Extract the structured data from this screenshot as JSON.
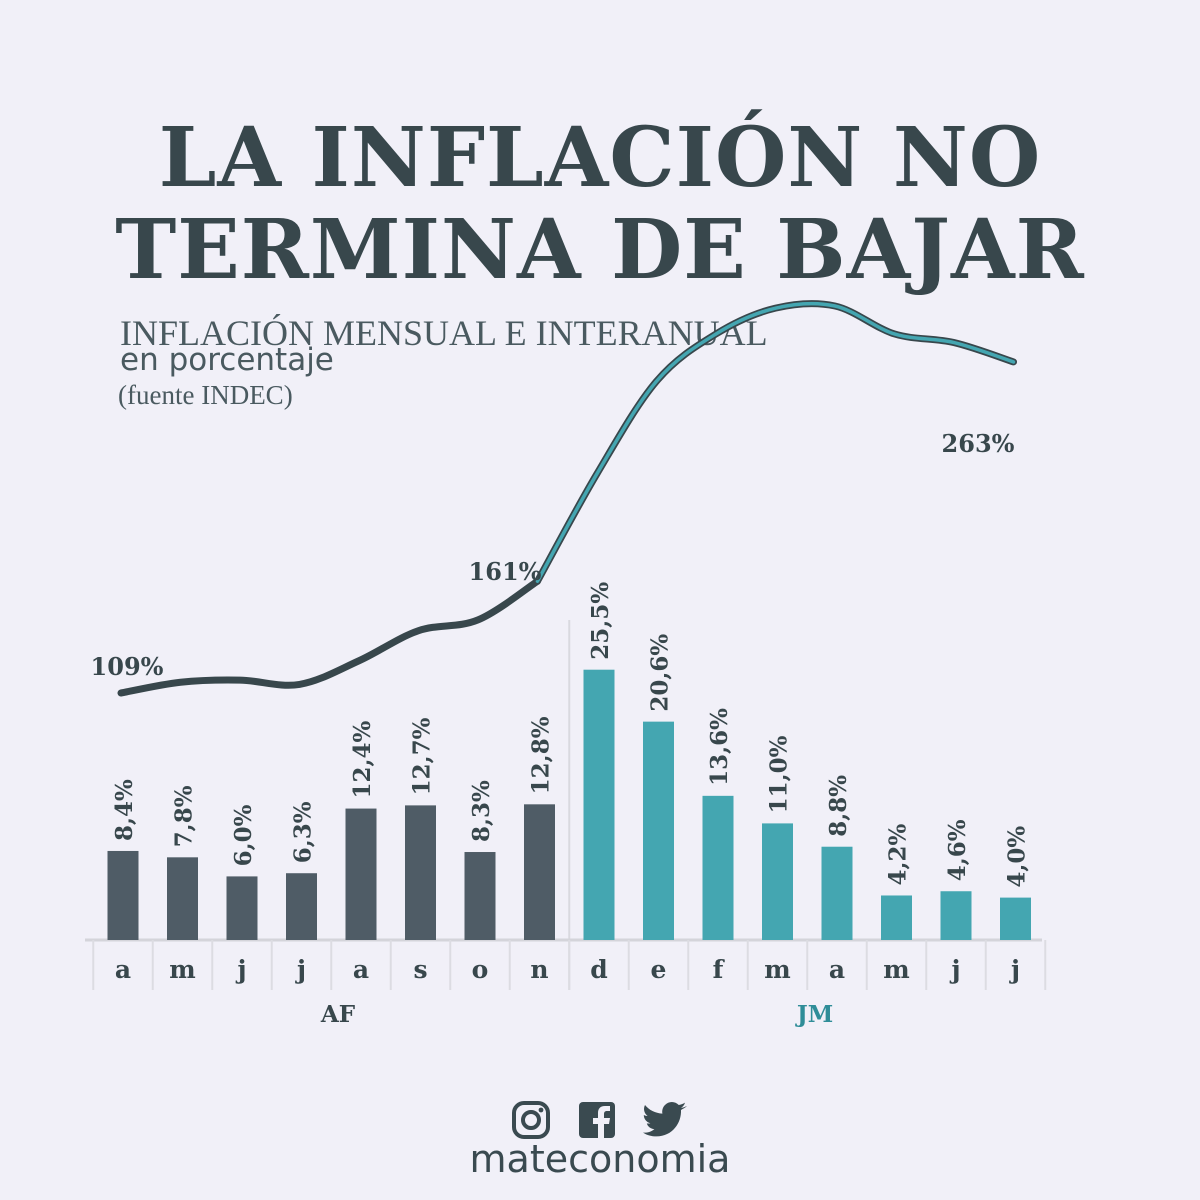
{
  "title_line1": "LA INFLACIÓN NO",
  "title_line2": "TERMINA DE BAJAR",
  "subtitle1": "INFLACIÓN MENSUAL E INTERANUAL",
  "subtitle2": "en porcentaje",
  "subtitle3": "(fuente INDEC)",
  "brand": "mateconomia",
  "icons": [
    "instagram-icon",
    "facebook-icon",
    "twitter-icon"
  ],
  "colors": {
    "af": "#4f5c66",
    "jm": "#44a6b1",
    "line_dark": "#38474c",
    "line_teal": "#44a6b1",
    "text": "#38474c"
  },
  "chart_data": {
    "type": "bar+line",
    "categories": [
      "a",
      "m",
      "j",
      "j",
      "a",
      "s",
      "o",
      "n",
      "d",
      "e",
      "f",
      "m",
      "a",
      "m",
      "j",
      "j"
    ],
    "groups": [
      {
        "name": "AF",
        "from": 0,
        "to": 7,
        "color": "#4f5c66"
      },
      {
        "name": "JM",
        "from": 8,
        "to": 15,
        "color": "#44a6b1"
      }
    ],
    "series": [
      {
        "type": "bar",
        "values": [
          8.4,
          7.8,
          6.0,
          6.3,
          12.4,
          12.7,
          8.3,
          12.8,
          25.5,
          20.6,
          13.6,
          11.0,
          8.8,
          4.2,
          4.6,
          4.0
        ],
        "labels": [
          "8,4%",
          "7,8%",
          "6,0%",
          "6,3%",
          "12,4%",
          "12,7%",
          "8,3%",
          "12,8%",
          "25,5%",
          "20,6%",
          "13,6%",
          "11,0%",
          "8,8%",
          "4,2%",
          "4,6%",
          "4,0%"
        ]
      },
      {
        "type": "line",
        "values": [
          109,
          114,
          115,
          113,
          124,
          138,
          143,
          161,
          211,
          254,
          276,
          288,
          289,
          276,
          272,
          263
        ],
        "annotations": [
          {
            "index": 0,
            "label": "109%"
          },
          {
            "index": 7,
            "label": "161%"
          },
          {
            "index": 15,
            "label": "263%"
          }
        ]
      }
    ]
  }
}
